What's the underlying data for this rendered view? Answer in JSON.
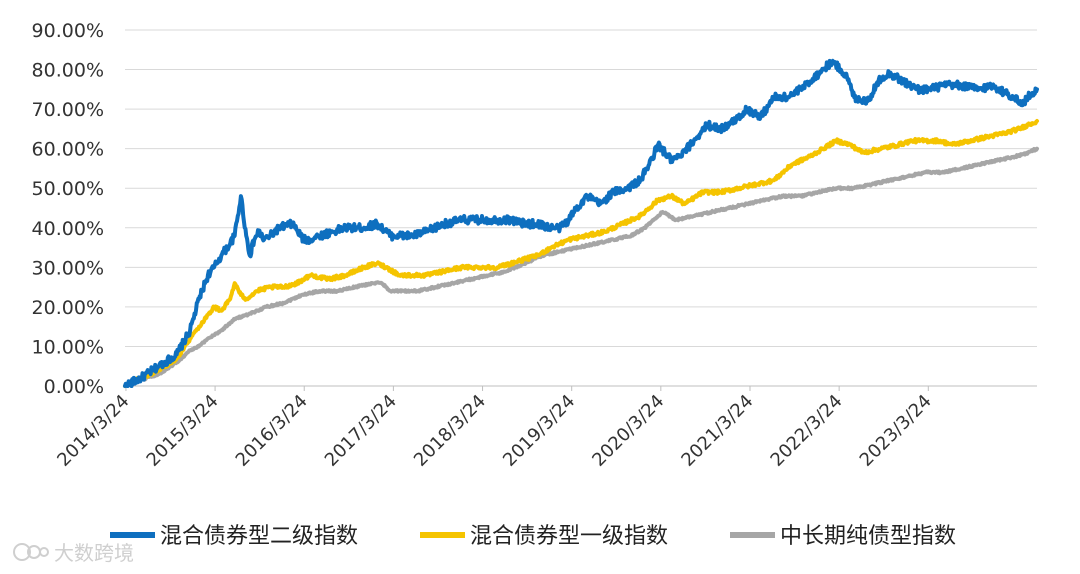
{
  "chart_data": {
    "type": "line",
    "title": "",
    "xlabel": "",
    "ylabel": "",
    "ylim": [
      0,
      90
    ],
    "y_ticks": [
      "0.00%",
      "10.00%",
      "20.00%",
      "30.00%",
      "40.00%",
      "50.00%",
      "60.00%",
      "70.00%",
      "80.00%",
      "90.00%"
    ],
    "x_ticks": [
      "2014/3/24",
      "2015/3/24",
      "2016/3/24",
      "2017/3/24",
      "2018/3/24",
      "2019/3/24",
      "2020/3/24",
      "2021/3/24",
      "2022/3/24",
      "2023/3/24"
    ],
    "xlim": [
      2014.22,
      2024.45
    ],
    "grid": "horizontal",
    "legend_position": "bottom",
    "series": [
      {
        "name": "混合债券型二级指数",
        "color": "#0e6fbf",
        "x": [
          2014.22,
          2014.4,
          2014.6,
          2014.8,
          2014.95,
          2015.05,
          2015.15,
          2015.22,
          2015.3,
          2015.4,
          2015.45,
          2015.52,
          2015.58,
          2015.62,
          2015.67,
          2015.72,
          2015.78,
          2015.85,
          2015.95,
          2016.1,
          2016.22,
          2016.3,
          2016.4,
          2016.55,
          2016.7,
          2016.9,
          2017.05,
          2017.2,
          2017.3,
          2017.45,
          2017.6,
          2017.8,
          2018.0,
          2018.2,
          2018.4,
          2018.55,
          2018.7,
          2018.85,
          2019.0,
          2019.1,
          2019.2,
          2019.25,
          2019.4,
          2019.55,
          2019.7,
          2019.85,
          2020.0,
          2020.1,
          2020.2,
          2020.35,
          2020.45,
          2020.6,
          2020.75,
          2020.9,
          2021.0,
          2021.1,
          2021.2,
          2021.35,
          2021.5,
          2021.65,
          2021.8,
          2021.95,
          2022.05,
          2022.15,
          2022.25,
          2022.32,
          2022.4,
          2022.55,
          2022.7,
          2022.8,
          2022.95,
          2023.1,
          2023.25,
          2023.4,
          2023.6,
          2023.8,
          2023.95,
          2024.1,
          2024.2,
          2024.28,
          2024.35,
          2024.45
        ],
        "values": [
          0,
          2,
          5,
          8,
          14,
          22,
          28,
          30,
          33,
          36,
          38,
          48,
          38,
          33,
          37,
          39,
          37,
          38,
          40,
          41,
          37,
          37,
          38,
          39,
          40,
          40,
          41,
          38,
          38,
          38,
          39,
          41,
          42,
          42,
          42,
          42,
          41,
          41,
          40,
          40,
          42,
          44,
          48,
          46,
          49,
          50,
          52,
          56,
          61,
          57,
          58,
          62,
          66,
          65,
          66,
          68,
          70,
          68,
          73,
          73,
          75,
          78,
          80,
          82,
          80,
          78,
          73,
          72,
          78,
          79,
          77,
          75,
          75,
          76,
          76,
          75,
          76,
          74,
          73,
          71,
          73,
          75
        ]
      },
      {
        "name": "混合债券型一级指数",
        "color": "#f5c400",
        "x": [
          2014.22,
          2014.4,
          2014.6,
          2014.8,
          2014.95,
          2015.05,
          2015.15,
          2015.22,
          2015.3,
          2015.4,
          2015.45,
          2015.52,
          2015.58,
          2015.7,
          2015.85,
          2016.0,
          2016.15,
          2016.3,
          2016.5,
          2016.7,
          2016.9,
          2017.05,
          2017.15,
          2017.3,
          2017.45,
          2017.6,
          2017.8,
          2018.0,
          2018.2,
          2018.4,
          2018.55,
          2018.7,
          2018.85,
          2019.0,
          2019.2,
          2019.4,
          2019.6,
          2019.8,
          2020.0,
          2020.2,
          2020.35,
          2020.5,
          2020.7,
          2020.9,
          2021.1,
          2021.3,
          2021.5,
          2021.7,
          2021.9,
          2022.05,
          2022.2,
          2022.35,
          2022.5,
          2022.7,
          2022.9,
          2023.05,
          2023.2,
          2023.35,
          2023.5,
          2023.7,
          2023.9,
          2024.1,
          2024.25,
          2024.35,
          2024.45
        ],
        "values": [
          0,
          2,
          4,
          7,
          12,
          15,
          18,
          20,
          19,
          22,
          26,
          23,
          22,
          24,
          25,
          25,
          26,
          28,
          27,
          28,
          30,
          31,
          30,
          28,
          28,
          28,
          29,
          30,
          30,
          30,
          31,
          32,
          33,
          35,
          37,
          38,
          39,
          41,
          43,
          47,
          48,
          46,
          49,
          49,
          50,
          51,
          52,
          56,
          58,
          60,
          62,
          61,
          59,
          60,
          61,
          62,
          62,
          62,
          61,
          62,
          63,
          64,
          65,
          66,
          67
        ]
      },
      {
        "name": "中长期纯债型指数",
        "color": "#a6a6a6",
        "x": [
          2014.22,
          2014.4,
          2014.6,
          2014.8,
          2014.95,
          2015.05,
          2015.15,
          2015.3,
          2015.45,
          2015.6,
          2015.8,
          2016.0,
          2016.2,
          2016.4,
          2016.6,
          2016.8,
          2017.0,
          2017.1,
          2017.2,
          2017.3,
          2017.5,
          2017.7,
          2017.9,
          2018.1,
          2018.3,
          2018.5,
          2018.7,
          2018.9,
          2019.1,
          2019.3,
          2019.5,
          2019.7,
          2019.9,
          2020.05,
          2020.15,
          2020.25,
          2020.4,
          2020.6,
          2020.8,
          2021.0,
          2021.2,
          2021.4,
          2021.6,
          2021.8,
          2022.0,
          2022.2,
          2022.4,
          2022.6,
          2022.8,
          2023.0,
          2023.2,
          2023.4,
          2023.6,
          2023.8,
          2024.0,
          2024.2,
          2024.35,
          2024.45
        ],
        "values": [
          0,
          1.5,
          3,
          6,
          9,
          10,
          12,
          14,
          17,
          18,
          20,
          21,
          23,
          24,
          24,
          25,
          26,
          26,
          24,
          24,
          24,
          25,
          26,
          27,
          28,
          29,
          31,
          33,
          34,
          35,
          36,
          37,
          38,
          40,
          42,
          44,
          42,
          43,
          44,
          45,
          46,
          47,
          48,
          48,
          49,
          50,
          50,
          51,
          52,
          53,
          54,
          54,
          55,
          56,
          57,
          58,
          59,
          60
        ]
      }
    ]
  },
  "watermark": "大数跨境",
  "watermark_icon": "brand-logo-icon"
}
